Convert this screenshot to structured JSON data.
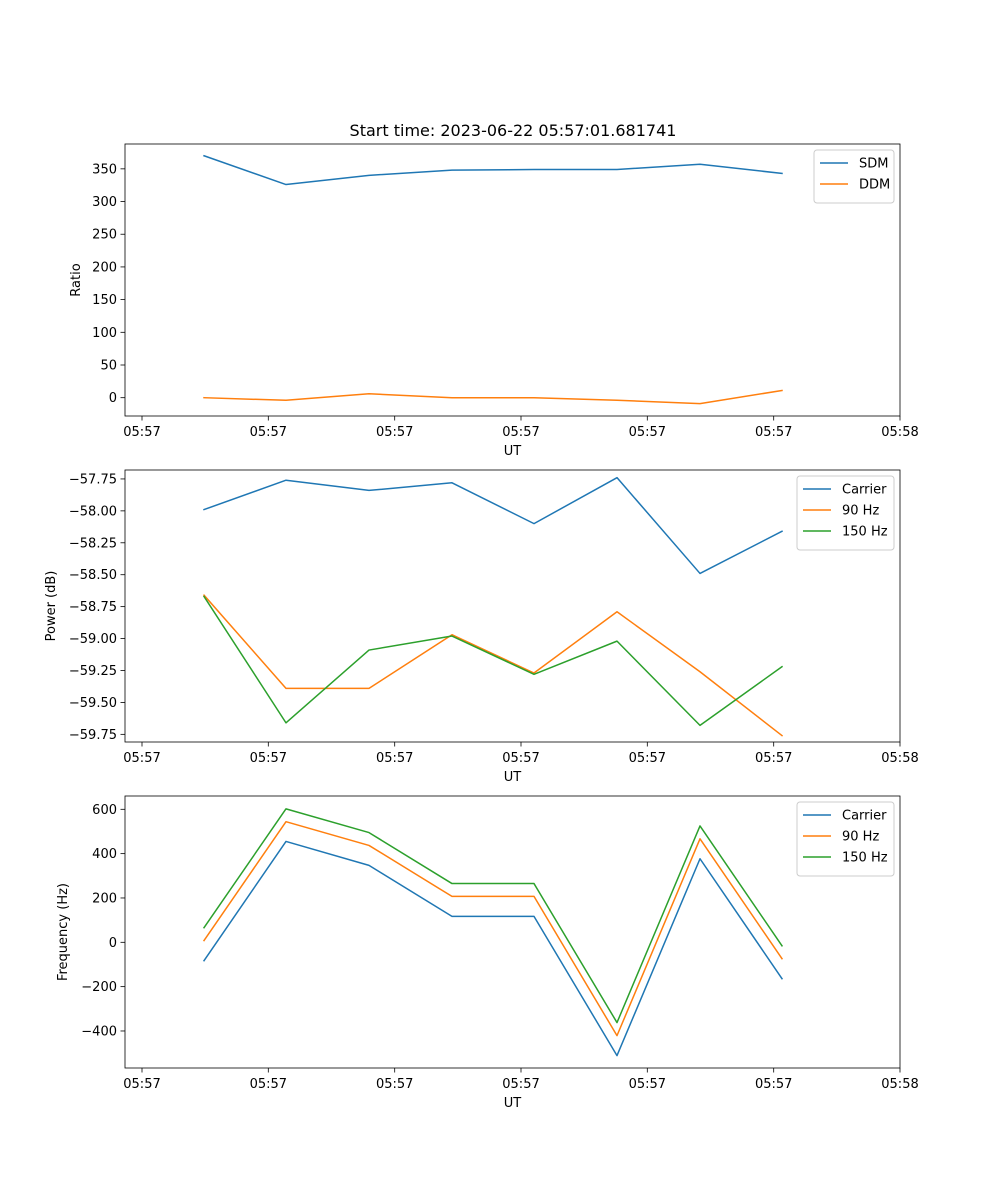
{
  "title": "Start time: 2023-06-22 05:57:01.681741",
  "colors": {
    "blue": "#1f77b4",
    "orange": "#ff7f0e",
    "green": "#2ca02c"
  },
  "chart_data": [
    {
      "type": "line",
      "xlabel": "UT",
      "ylabel": "Ratio",
      "x_tick_labels": [
        "05:57",
        "05:57",
        "05:57",
        "05:57",
        "05:57",
        "05:57",
        "05:58"
      ],
      "x_points": 8,
      "ylim": [
        -28,
        388
      ],
      "yticks": [
        0,
        50,
        100,
        150,
        200,
        250,
        300,
        350
      ],
      "ytick_labels": [
        "0",
        "50",
        "100",
        "150",
        "200",
        "250",
        "300",
        "350"
      ],
      "legend_position": "upper right",
      "series": [
        {
          "name": "SDM",
          "color": "#1f77b4",
          "values": [
            370,
            326,
            340,
            348,
            349,
            349,
            357,
            343
          ]
        },
        {
          "name": "DDM",
          "color": "#ff7f0e",
          "values": [
            0,
            -4,
            6,
            0,
            0,
            -4,
            -9,
            11
          ]
        }
      ]
    },
    {
      "type": "line",
      "xlabel": "UT",
      "ylabel": "Power (dB)",
      "x_tick_labels": [
        "05:57",
        "05:57",
        "05:57",
        "05:57",
        "05:57",
        "05:57",
        "05:58"
      ],
      "x_points": 8,
      "ylim": [
        -59.81,
        -57.68
      ],
      "yticks": [
        -59.75,
        -59.5,
        -59.25,
        -59.0,
        -58.75,
        -58.5,
        -58.25,
        -58.0,
        -57.75
      ],
      "ytick_labels": [
        "−59.75",
        "−59.50",
        "−59.25",
        "−59.00",
        "−58.75",
        "−58.50",
        "−58.25",
        "−58.00",
        "−57.75"
      ],
      "legend_position": "upper right",
      "series": [
        {
          "name": "Carrier",
          "color": "#1f77b4",
          "values": [
            -57.99,
            -57.76,
            -57.84,
            -57.78,
            -58.1,
            -57.74,
            -58.49,
            -58.16
          ]
        },
        {
          "name": "90 Hz",
          "color": "#ff7f0e",
          "values": [
            -58.66,
            -59.39,
            -59.39,
            -58.97,
            -59.27,
            -58.79,
            -59.26,
            -59.76
          ]
        },
        {
          "name": "150 Hz",
          "color": "#2ca02c",
          "values": [
            -58.67,
            -59.66,
            -59.09,
            -58.98,
            -59.28,
            -59.02,
            -59.68,
            -59.22
          ]
        }
      ]
    },
    {
      "type": "line",
      "xlabel": "UT",
      "ylabel": "Frequency (Hz)",
      "x_tick_labels": [
        "05:57",
        "05:57",
        "05:57",
        "05:57",
        "05:57",
        "05:57",
        "05:58"
      ],
      "x_points": 8,
      "ylim": [
        -567,
        660
      ],
      "yticks": [
        -400,
        -200,
        0,
        200,
        400,
        600
      ],
      "ytick_labels": [
        "−400",
        "−200",
        "0",
        "200",
        "400",
        "600"
      ],
      "legend_position": "upper right",
      "series": [
        {
          "name": "Carrier",
          "color": "#1f77b4",
          "values": [
            -83,
            455,
            347,
            117,
            117,
            -511,
            377,
            -164
          ]
        },
        {
          "name": "90 Hz",
          "color": "#ff7f0e",
          "values": [
            8,
            544,
            437,
            207,
            207,
            -421,
            467,
            -74
          ]
        },
        {
          "name": "150 Hz",
          "color": "#2ca02c",
          "values": [
            66,
            602,
            495,
            265,
            265,
            -362,
            525,
            -16
          ]
        }
      ]
    }
  ]
}
